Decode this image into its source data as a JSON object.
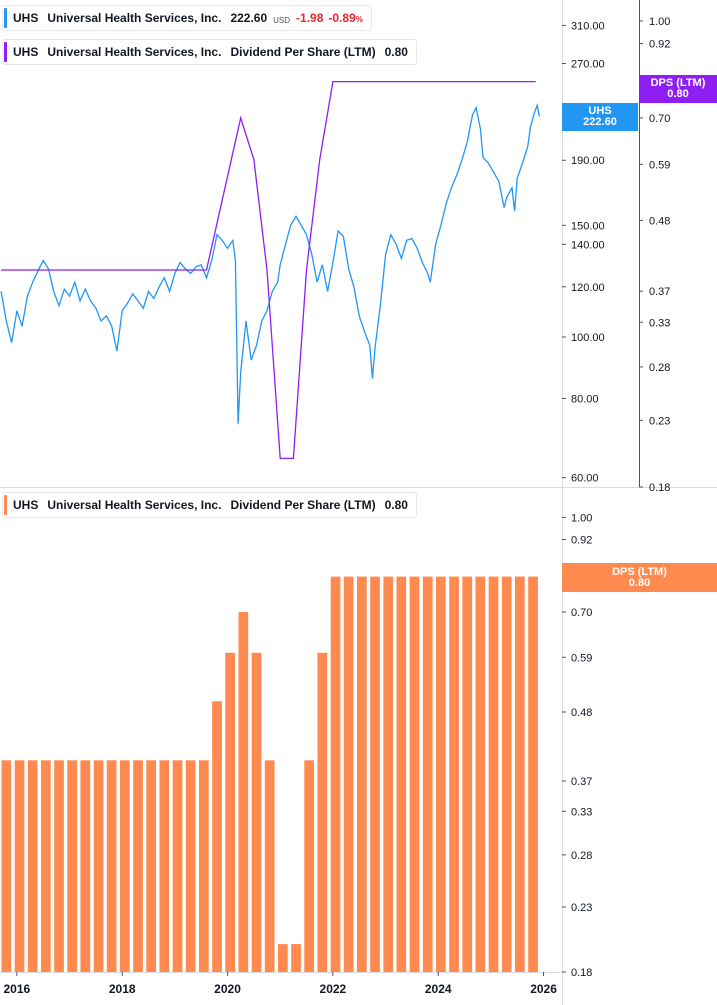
{
  "colors": {
    "price_line": "#2196f3",
    "dps_line": "#8e1ef4",
    "dps_bars": "#ff8a50",
    "negative": "#e0282e",
    "axis_text": "#131722",
    "border": "#d9dbe0"
  },
  "legend_price": {
    "symbol": "UHS",
    "name": "Universal Health Services, Inc.",
    "value": "222.60",
    "currency": "USD",
    "change": "-1.98",
    "change_pct": "-0.89",
    "pct_sign": "%"
  },
  "legend_dps_top": {
    "symbol": "UHS",
    "name": "Universal Health Services, Inc.",
    "metric": "Dividend Per Share (LTM)",
    "value": "0.80"
  },
  "legend_dps_bottom": {
    "symbol": "UHS",
    "name": "Universal Health Services, Inc.",
    "metric": "Dividend Per Share (LTM)",
    "value": "0.80"
  },
  "tags": {
    "price": {
      "label": "UHS",
      "value": "222.60"
    },
    "dps_top": {
      "label": "DPS (LTM)",
      "value": "0.80"
    },
    "dps_bottom": {
      "label": "DPS (LTM)",
      "value": "0.80"
    }
  },
  "chart_data": [
    {
      "type": "line",
      "panel": "top",
      "scale": "log",
      "price_axis_ticks": [
        310,
        270,
        190,
        150,
        140,
        120,
        100,
        80,
        60
      ],
      "price_axis_labels": [
        "310.00",
        "270.00",
        "190.00",
        "150.00",
        "140.00",
        "120.00",
        "100.00",
        "80.00",
        "60.00"
      ],
      "price_ylim": [
        58,
        340
      ],
      "dps_axis_ticks": [
        1.0,
        0.92,
        0.7,
        0.59,
        0.48,
        0.37,
        0.33,
        0.28,
        0.23,
        0.18
      ],
      "dps_axis_labels": [
        "1.00",
        "0.92",
        "0.70",
        "0.59",
        "0.48",
        "0.37",
        "0.33",
        "0.28",
        "0.23",
        "0.18"
      ],
      "dps_ylim": [
        0.18,
        1.08
      ],
      "series": [
        {
          "name": "UHS",
          "points": [
            [
              2015.7,
              118
            ],
            [
              2015.8,
              106
            ],
            [
              2015.9,
              98
            ],
            [
              2016.0,
              110
            ],
            [
              2016.1,
              104
            ],
            [
              2016.2,
              116
            ],
            [
              2016.3,
              122
            ],
            [
              2016.4,
              127
            ],
            [
              2016.5,
              132
            ],
            [
              2016.6,
              128
            ],
            [
              2016.7,
              118
            ],
            [
              2016.8,
              112
            ],
            [
              2016.9,
              119
            ],
            [
              2017.0,
              116
            ],
            [
              2017.1,
              122
            ],
            [
              2017.2,
              114
            ],
            [
              2017.3,
              119
            ],
            [
              2017.4,
              114
            ],
            [
              2017.5,
              111
            ],
            [
              2017.6,
              106
            ],
            [
              2017.7,
              108
            ],
            [
              2017.8,
              104
            ],
            [
              2017.9,
              95
            ],
            [
              2018.0,
              110
            ],
            [
              2018.1,
              113
            ],
            [
              2018.2,
              117
            ],
            [
              2018.3,
              114
            ],
            [
              2018.4,
              111
            ],
            [
              2018.5,
              118
            ],
            [
              2018.6,
              115
            ],
            [
              2018.7,
              120
            ],
            [
              2018.8,
              124
            ],
            [
              2018.9,
              118
            ],
            [
              2019.0,
              126
            ],
            [
              2019.1,
              131
            ],
            [
              2019.2,
              128
            ],
            [
              2019.3,
              126
            ],
            [
              2019.4,
              129
            ],
            [
              2019.5,
              130
            ],
            [
              2019.6,
              124
            ],
            [
              2019.7,
              132
            ],
            [
              2019.8,
              145
            ],
            [
              2019.9,
              142
            ],
            [
              2020.0,
              138
            ],
            [
              2020.1,
              142
            ],
            [
              2020.15,
              132
            ],
            [
              2020.2,
              73
            ],
            [
              2020.25,
              88
            ],
            [
              2020.35,
              106
            ],
            [
              2020.45,
              92
            ],
            [
              2020.55,
              97
            ],
            [
              2020.65,
              106
            ],
            [
              2020.75,
              110
            ],
            [
              2020.85,
              118
            ],
            [
              2020.95,
              122
            ],
            [
              2021.0,
              130
            ],
            [
              2021.1,
              140
            ],
            [
              2021.2,
              150
            ],
            [
              2021.3,
              155
            ],
            [
              2021.4,
              150
            ],
            [
              2021.5,
              145
            ],
            [
              2021.6,
              135
            ],
            [
              2021.7,
              122
            ],
            [
              2021.8,
              130
            ],
            [
              2021.9,
              118
            ],
            [
              2022.0,
              131
            ],
            [
              2022.1,
              147
            ],
            [
              2022.2,
              144
            ],
            [
              2022.3,
              128
            ],
            [
              2022.4,
              120
            ],
            [
              2022.5,
              108
            ],
            [
              2022.6,
              102
            ],
            [
              2022.7,
              97
            ],
            [
              2022.75,
              86
            ],
            [
              2022.8,
              96
            ],
            [
              2022.9,
              112
            ],
            [
              2023.0,
              135
            ],
            [
              2023.1,
              145
            ],
            [
              2023.2,
              140
            ],
            [
              2023.3,
              133
            ],
            [
              2023.4,
              142
            ],
            [
              2023.5,
              143
            ],
            [
              2023.6,
              138
            ],
            [
              2023.7,
              131
            ],
            [
              2023.8,
              126
            ],
            [
              2023.85,
              122
            ],
            [
              2023.95,
              140
            ],
            [
              2024.05,
              150
            ],
            [
              2024.15,
              162
            ],
            [
              2024.25,
              172
            ],
            [
              2024.35,
              180
            ],
            [
              2024.45,
              190
            ],
            [
              2024.55,
              203
            ],
            [
              2024.65,
              224
            ],
            [
              2024.72,
              230
            ],
            [
              2024.8,
              213
            ],
            [
              2024.85,
              192
            ],
            [
              2024.95,
              188
            ],
            [
              2025.05,
              182
            ],
            [
              2025.15,
              176
            ],
            [
              2025.25,
              160
            ],
            [
              2025.3,
              166
            ],
            [
              2025.4,
              172
            ],
            [
              2025.45,
              158
            ],
            [
              2025.5,
              178
            ],
            [
              2025.6,
              188
            ],
            [
              2025.7,
              200
            ],
            [
              2025.75,
              214
            ],
            [
              2025.82,
              225
            ],
            [
              2025.88,
              232
            ],
            [
              2025.92,
              222.6
            ]
          ]
        },
        {
          "name": "Dividend Per Share (LTM)",
          "points": [
            [
              2015.7,
              0.4
            ],
            [
              2019.6,
              0.4
            ],
            [
              2020.25,
              0.7
            ],
            [
              2020.5,
              0.6
            ],
            [
              2020.75,
              0.4
            ],
            [
              2021.0,
              0.2
            ],
            [
              2021.25,
              0.2
            ],
            [
              2021.5,
              0.4
            ],
            [
              2021.75,
              0.6
            ],
            [
              2022.0,
              0.8
            ],
            [
              2025.85,
              0.8
            ]
          ]
        }
      ]
    },
    {
      "type": "bar",
      "panel": "bottom",
      "name": "Dividend Per Share (LTM)",
      "scale": "log",
      "axis_ticks": [
        1.0,
        0.92,
        0.81,
        0.7,
        0.59,
        0.48,
        0.37,
        0.33,
        0.28,
        0.23,
        0.18
      ],
      "axis_labels": [
        "1.00",
        "0.92",
        "0.81",
        "0.70",
        "0.59",
        "0.48",
        "0.37",
        "0.33",
        "0.28",
        "0.23",
        "0.18"
      ],
      "ylim": [
        0.18,
        1.08
      ],
      "x": [
        2015.8,
        2016.05,
        2016.3,
        2016.55,
        2016.8,
        2017.05,
        2017.3,
        2017.55,
        2017.8,
        2018.05,
        2018.3,
        2018.55,
        2018.8,
        2019.05,
        2019.3,
        2019.55,
        2019.8,
        2020.05,
        2020.3,
        2020.55,
        2020.8,
        2021.05,
        2021.3,
        2021.55,
        2021.8,
        2022.05,
        2022.3,
        2022.55,
        2022.8,
        2023.05,
        2023.3,
        2023.55,
        2023.8,
        2024.05,
        2024.3,
        2024.55,
        2024.8,
        2025.05,
        2025.3,
        2025.55,
        2025.8
      ],
      "values": [
        0.4,
        0.4,
        0.4,
        0.4,
        0.4,
        0.4,
        0.4,
        0.4,
        0.4,
        0.4,
        0.4,
        0.4,
        0.4,
        0.4,
        0.4,
        0.4,
        0.5,
        0.6,
        0.7,
        0.6,
        0.4,
        0.2,
        0.2,
        0.4,
        0.6,
        0.8,
        0.8,
        0.8,
        0.8,
        0.8,
        0.8,
        0.8,
        0.8,
        0.8,
        0.8,
        0.8,
        0.8,
        0.8,
        0.8,
        0.8,
        0.8
      ]
    }
  ],
  "time_axis": {
    "ticks": [
      2016,
      2018,
      2020,
      2022,
      2024,
      2026
    ],
    "labels": [
      "2016",
      "2018",
      "2020",
      "2022",
      "2024",
      "2026"
    ],
    "xlim": [
      2015.68,
      2026.35
    ]
  }
}
